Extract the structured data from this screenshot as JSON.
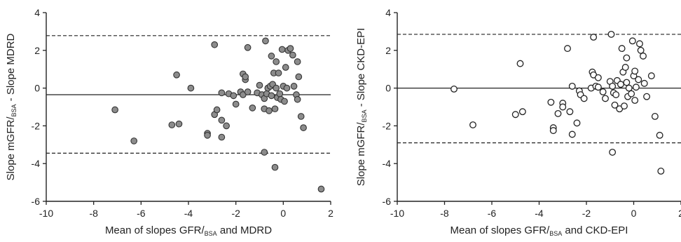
{
  "chart_data": [
    {
      "type": "scatter",
      "xlabel": {
        "prefix": "Mean of slopes GFR/",
        "sub": "BSA",
        "suffix": " and MDRD"
      },
      "ylabel": {
        "prefix": "Slope mGFR/",
        "sub": "BSA",
        "suffix": " - Slope MDRD"
      },
      "xlim": [
        -10,
        2
      ],
      "ylim": [
        -6,
        4
      ],
      "xticks": [
        -10,
        -8,
        -6,
        -4,
        -2,
        0,
        2
      ],
      "yticks": [
        -6,
        -4,
        -2,
        0,
        2,
        4
      ],
      "grid": false,
      "marker": "filled-circle",
      "marker_color": "#8c8c8c",
      "reference_lines": [
        {
          "style": "solid",
          "y": -0.35
        },
        {
          "style": "dashed",
          "y": 2.78
        },
        {
          "style": "dashed",
          "y": -3.45
        }
      ],
      "points": [
        [
          -7.1,
          -1.15
        ],
        [
          -6.3,
          -2.8
        ],
        [
          -4.7,
          -1.95
        ],
        [
          -4.4,
          -1.9
        ],
        [
          -4.5,
          0.7
        ],
        [
          -3.9,
          0.0
        ],
        [
          -3.2,
          -2.4
        ],
        [
          -3.2,
          -2.5
        ],
        [
          -2.9,
          2.3
        ],
        [
          -2.9,
          -1.4
        ],
        [
          -2.8,
          -1.15
        ],
        [
          -2.6,
          -0.25
        ],
        [
          -2.6,
          -1.7
        ],
        [
          -2.6,
          -2.6
        ],
        [
          -2.4,
          -2.0
        ],
        [
          -2.3,
          -0.3
        ],
        [
          -2.1,
          -0.4
        ],
        [
          -2.0,
          -0.85
        ],
        [
          -1.7,
          0.75
        ],
        [
          -1.6,
          0.45
        ],
        [
          -1.6,
          0.6
        ],
        [
          -1.8,
          -0.2
        ],
        [
          -1.7,
          -0.35
        ],
        [
          -1.5,
          2.15
        ],
        [
          -1.5,
          -0.2
        ],
        [
          -1.3,
          -1.05
        ],
        [
          -1.1,
          -0.25
        ],
        [
          -1.0,
          0.15
        ],
        [
          -0.9,
          -0.35
        ],
        [
          -0.8,
          -0.55
        ],
        [
          -0.8,
          -1.1
        ],
        [
          -0.8,
          -3.4
        ],
        [
          -0.75,
          2.5
        ],
        [
          -0.7,
          -0.3
        ],
        [
          -0.65,
          0.0
        ],
        [
          -0.6,
          -1.2
        ],
        [
          -0.55,
          0.1
        ],
        [
          -0.5,
          1.7
        ],
        [
          -0.5,
          -0.4
        ],
        [
          -0.45,
          0.2
        ],
        [
          -0.4,
          0.8
        ],
        [
          -0.35,
          -1.1
        ],
        [
          -0.35,
          -4.2
        ],
        [
          -0.3,
          1.4
        ],
        [
          -0.3,
          0.0
        ],
        [
          -0.25,
          -0.5
        ],
        [
          -0.2,
          0.8
        ],
        [
          -0.15,
          -0.3
        ],
        [
          -0.1,
          -0.6
        ],
        [
          -0.05,
          2.05
        ],
        [
          0.0,
          0.1
        ],
        [
          0.05,
          -0.7
        ],
        [
          0.1,
          1.1
        ],
        [
          0.15,
          0.0
        ],
        [
          0.2,
          2.0
        ],
        [
          0.3,
          2.1
        ],
        [
          0.4,
          1.75
        ],
        [
          0.45,
          0.1
        ],
        [
          0.55,
          -0.35
        ],
        [
          0.6,
          -0.6
        ],
        [
          0.6,
          1.4
        ],
        [
          0.65,
          0.6
        ],
        [
          0.75,
          -1.5
        ],
        [
          0.85,
          -2.1
        ],
        [
          1.6,
          -5.35
        ]
      ]
    },
    {
      "type": "scatter",
      "xlabel": {
        "prefix": "Mean of slopes GFR/",
        "sub": "BSA",
        "suffix": " and CKD-EPI"
      },
      "ylabel": {
        "prefix": "Slope mGFR/",
        "sub": "BSA",
        "suffix": " - Slope CKD-EPI"
      },
      "xlim": [
        -10,
        2
      ],
      "ylim": [
        -6,
        4
      ],
      "xticks": [
        -10,
        -8,
        -6,
        -4,
        -2,
        0,
        2
      ],
      "yticks": [
        -6,
        -4,
        -2,
        0,
        2,
        4
      ],
      "grid": false,
      "marker": "open-circle",
      "marker_color": "#222222",
      "reference_lines": [
        {
          "style": "solid",
          "y": 0.0
        },
        {
          "style": "dashed",
          "y": 2.85
        },
        {
          "style": "dashed",
          "y": -2.9
        }
      ],
      "points": [
        [
          -7.6,
          -0.05
        ],
        [
          -6.8,
          -1.95
        ],
        [
          -5.0,
          -1.4
        ],
        [
          -4.8,
          1.3
        ],
        [
          -4.7,
          -1.25
        ],
        [
          -3.5,
          -0.75
        ],
        [
          -3.4,
          -2.1
        ],
        [
          -3.4,
          -2.25
        ],
        [
          -3.2,
          -1.35
        ],
        [
          -3.0,
          -0.8
        ],
        [
          -3.0,
          -1.0
        ],
        [
          -2.8,
          2.1
        ],
        [
          -2.7,
          -1.25
        ],
        [
          -2.6,
          0.1
        ],
        [
          -2.6,
          -2.45
        ],
        [
          -2.4,
          -1.85
        ],
        [
          -2.3,
          -0.15
        ],
        [
          -2.25,
          -0.35
        ],
        [
          -2.1,
          -0.55
        ],
        [
          -1.8,
          0.0
        ],
        [
          -1.75,
          0.85
        ],
        [
          -1.7,
          0.7
        ],
        [
          -1.6,
          0.1
        ],
        [
          -1.7,
          2.7
        ],
        [
          -1.5,
          0.55
        ],
        [
          -1.5,
          0.05
        ],
        [
          -1.3,
          -0.2
        ],
        [
          -1.2,
          -0.55
        ],
        [
          -1.0,
          0.35
        ],
        [
          -0.95,
          2.85
        ],
        [
          -0.9,
          0.1
        ],
        [
          -0.85,
          -0.25
        ],
        [
          -0.9,
          -3.4
        ],
        [
          -0.8,
          -0.9
        ],
        [
          -0.75,
          -0.35
        ],
        [
          -0.7,
          0.4
        ],
        [
          -0.6,
          -1.1
        ],
        [
          -0.55,
          0.2
        ],
        [
          -0.5,
          2.1
        ],
        [
          -0.45,
          0.85
        ],
        [
          -0.4,
          -0.95
        ],
        [
          -0.35,
          1.1
        ],
        [
          -0.3,
          1.6
        ],
        [
          -0.3,
          0.3
        ],
        [
          -0.25,
          -0.45
        ],
        [
          -0.2,
          0.0
        ],
        [
          -0.1,
          -0.3
        ],
        [
          -0.05,
          2.5
        ],
        [
          0.0,
          0.65
        ],
        [
          0.05,
          -0.65
        ],
        [
          0.05,
          0.9
        ],
        [
          0.1,
          0.05
        ],
        [
          0.2,
          0.45
        ],
        [
          0.25,
          2.35
        ],
        [
          0.3,
          2.0
        ],
        [
          0.4,
          1.7
        ],
        [
          0.45,
          0.25
        ],
        [
          0.55,
          -0.45
        ],
        [
          0.75,
          0.65
        ],
        [
          0.9,
          -1.5
        ],
        [
          1.1,
          -2.5
        ],
        [
          1.15,
          -4.4
        ]
      ]
    }
  ]
}
